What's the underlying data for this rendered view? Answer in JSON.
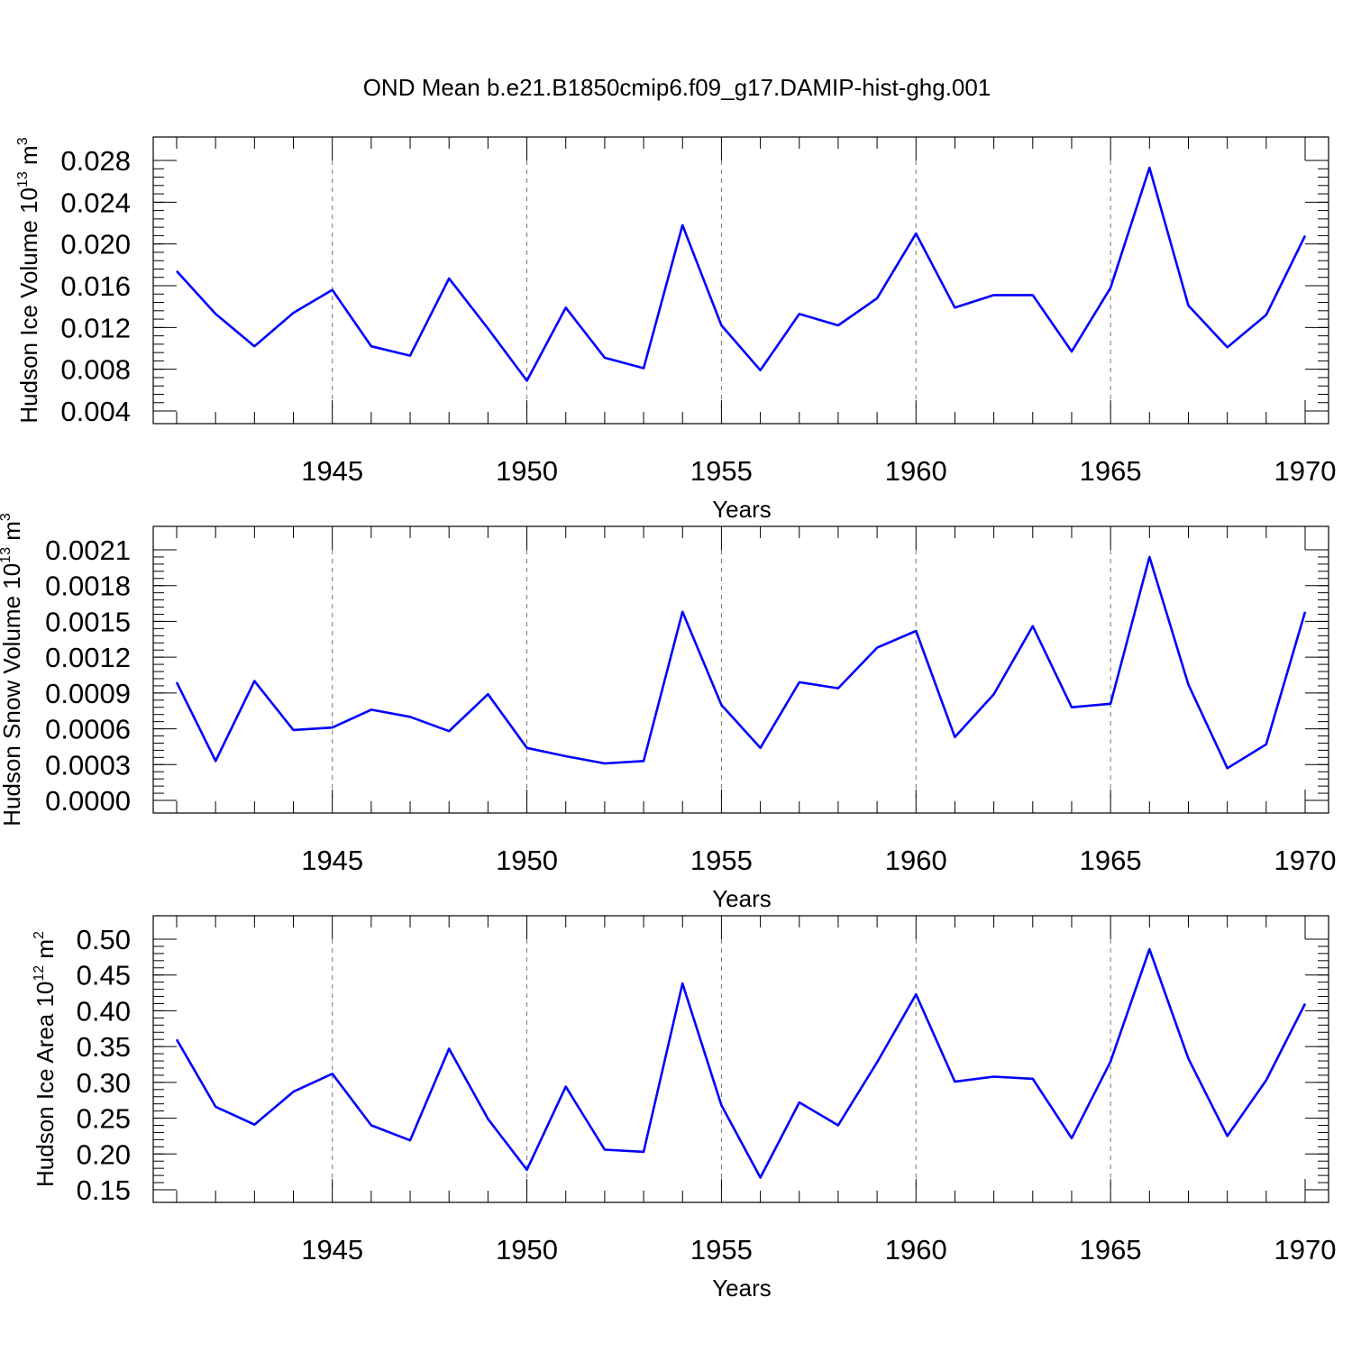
{
  "figure": {
    "title": "OND Mean b.e21.B1850cmip6.f09_g17.DAMIP-hist-ghg.001"
  },
  "chart_data": [
    {
      "type": "line",
      "title": "",
      "xlabel": "Years",
      "ylabel": "Hudson Ice Volume 10^13 m^3",
      "ylabel_parts": {
        "base": "Hudson Ice Volume 10",
        "exp": "13",
        "unit": " m",
        "unit_exp": "3"
      },
      "xlim": [
        1941,
        1970
      ],
      "ylim": [
        0.004,
        0.028
      ],
      "x_ticks": [
        1945,
        1950,
        1955,
        1960,
        1965,
        1970
      ],
      "x_tick_labels": [
        "1945",
        "1950",
        "1955",
        "1960",
        "1965",
        "1970"
      ],
      "y_ticks": [
        0.004,
        0.008,
        0.012,
        0.016,
        0.02,
        0.024,
        0.028
      ],
      "y_tick_labels": [
        "0.004",
        "0.008",
        "0.012",
        "0.016",
        "0.020",
        "0.024",
        "0.028"
      ],
      "y_minor_step": 0.0008,
      "grid": "vertical dashed at major x ticks",
      "legend": "none",
      "series": [
        {
          "color": "#0000ff",
          "x": [
            1941,
            1942,
            1943,
            1944,
            1945,
            1946,
            1947,
            1948,
            1949,
            1950,
            1951,
            1952,
            1953,
            1954,
            1955,
            1956,
            1957,
            1958,
            1959,
            1960,
            1961,
            1962,
            1963,
            1964,
            1965,
            1966,
            1967,
            1968,
            1969,
            1970
          ],
          "values": [
            0.0174,
            0.0133,
            0.0102,
            0.0134,
            0.0156,
            0.0102,
            0.0093,
            0.0167,
            0.0119,
            0.0069,
            0.0139,
            0.0091,
            0.0081,
            0.0218,
            0.0122,
            0.0079,
            0.0133,
            0.0122,
            0.0148,
            0.021,
            0.0139,
            0.0151,
            0.0151,
            0.0097,
            0.0158,
            0.0273,
            0.0141,
            0.0101,
            0.0132,
            0.0208
          ]
        }
      ]
    },
    {
      "type": "line",
      "title": "",
      "xlabel": "Years",
      "ylabel": "Hudson Snow Volume 10^13 m^3",
      "ylabel_parts": {
        "base": "Hudson Snow Volume 10",
        "exp": "13",
        "unit": " m",
        "unit_exp": "3"
      },
      "xlim": [
        1941,
        1970
      ],
      "ylim": [
        0.0,
        0.0021
      ],
      "x_ticks": [
        1945,
        1950,
        1955,
        1960,
        1965,
        1970
      ],
      "x_tick_labels": [
        "1945",
        "1950",
        "1955",
        "1960",
        "1965",
        "1970"
      ],
      "y_ticks": [
        0.0,
        0.0003,
        0.0006,
        0.0009,
        0.0012,
        0.0015,
        0.0018,
        0.0021
      ],
      "y_tick_labels": [
        "0.0000",
        "0.0003",
        "0.0006",
        "0.0009",
        "0.0012",
        "0.0015",
        "0.0018",
        "0.0021"
      ],
      "y_minor_step": 6e-05,
      "grid": "vertical dashed at major x ticks",
      "legend": "none",
      "series": [
        {
          "color": "#0000ff",
          "x": [
            1941,
            1942,
            1943,
            1944,
            1945,
            1946,
            1947,
            1948,
            1949,
            1950,
            1951,
            1952,
            1953,
            1954,
            1955,
            1956,
            1957,
            1958,
            1959,
            1960,
            1961,
            1962,
            1963,
            1964,
            1965,
            1966,
            1967,
            1968,
            1969,
            1970
          ],
          "values": [
            0.00099,
            0.00033,
            0.001,
            0.00059,
            0.00061,
            0.00076,
            0.0007,
            0.00058,
            0.00089,
            0.00044,
            0.00037,
            0.00031,
            0.00033,
            0.00158,
            0.0008,
            0.00044,
            0.00099,
            0.00094,
            0.00128,
            0.00142,
            0.00053,
            0.00089,
            0.00146,
            0.00078,
            0.00081,
            0.00204,
            0.00097,
            0.00027,
            0.00047,
            0.00158
          ]
        }
      ]
    },
    {
      "type": "line",
      "title": "",
      "xlabel": "Years",
      "ylabel": "Hudson Ice Area 10^12 m^2",
      "ylabel_parts": {
        "base": "Hudson Ice Area 10",
        "exp": "12",
        "unit": " m",
        "unit_exp": "2"
      },
      "xlim": [
        1941,
        1970
      ],
      "ylim": [
        0.15,
        0.5
      ],
      "x_ticks": [
        1945,
        1950,
        1955,
        1960,
        1965,
        1970
      ],
      "x_tick_labels": [
        "1945",
        "1950",
        "1955",
        "1960",
        "1965",
        "1970"
      ],
      "y_ticks": [
        0.15,
        0.2,
        0.25,
        0.3,
        0.35,
        0.4,
        0.45,
        0.5
      ],
      "y_tick_labels": [
        "0.15",
        "0.20",
        "0.25",
        "0.30",
        "0.35",
        "0.40",
        "0.45",
        "0.50"
      ],
      "y_minor_step": 0.01,
      "grid": "vertical dashed at major x ticks",
      "legend": "none",
      "series": [
        {
          "color": "#0000ff",
          "x": [
            1941,
            1942,
            1943,
            1944,
            1945,
            1946,
            1947,
            1948,
            1949,
            1950,
            1951,
            1952,
            1953,
            1954,
            1955,
            1956,
            1957,
            1958,
            1959,
            1960,
            1961,
            1962,
            1963,
            1964,
            1965,
            1966,
            1967,
            1968,
            1969,
            1970
          ],
          "values": [
            0.36,
            0.266,
            0.241,
            0.287,
            0.312,
            0.24,
            0.219,
            0.347,
            0.249,
            0.178,
            0.294,
            0.206,
            0.203,
            0.438,
            0.268,
            0.167,
            0.272,
            0.24,
            0.328,
            0.423,
            0.301,
            0.308,
            0.305,
            0.222,
            0.329,
            0.486,
            0.333,
            0.225,
            0.303,
            0.41
          ]
        }
      ]
    }
  ]
}
